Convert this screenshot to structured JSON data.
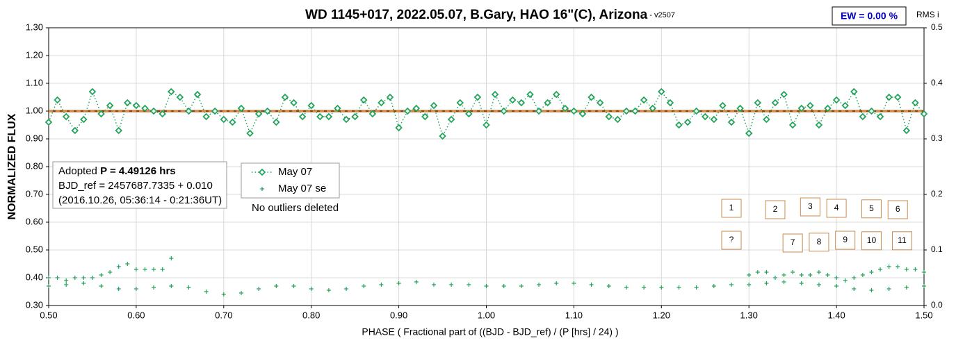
{
  "chart_data": {
    "type": "scatter",
    "title": "WD 1145+017, 2022.05.07, B.Gary, HAO 16\"(C), Arizona",
    "subtitle": " - v2507",
    "xlabel": "PHASE ( Fractional part of ((BJD - BJD_ref) / (P [hrs] / 24) )",
    "ylabel": "NORMALIZED FLUX",
    "y2label": "RMS i",
    "ew": "EW = 0.00 %",
    "info": {
      "prefix": "Adopted ",
      "period": "P = 4.49126 hrs",
      "line2": "BJD_ref = 2457687.7335 + 0.010",
      "line3": "(2016.10.26, 05:36:14 - 0:21:36UT)"
    },
    "note": "No outliers deleted",
    "xlim": [
      0.5,
      1.5
    ],
    "xticks": [
      {
        "value": 0.5,
        "label": "0.50"
      },
      {
        "value": 0.6,
        "label": "0.60"
      },
      {
        "value": 0.7,
        "label": "0.70"
      },
      {
        "value": 0.8,
        "label": "0.80"
      },
      {
        "value": 0.9,
        "label": "0.90"
      },
      {
        "value": 1.0,
        "label": "1.00"
      },
      {
        "value": 1.1,
        "label": "1.10"
      },
      {
        "value": 1.2,
        "label": "1.20"
      },
      {
        "value": 1.3,
        "label": "1.30"
      },
      {
        "value": 1.4,
        "label": "1.40"
      },
      {
        "value": 1.5,
        "label": "1.50"
      }
    ],
    "ylim": [
      0.3,
      1.3
    ],
    "yticks": [
      {
        "value": 0.3,
        "label": "0.30"
      },
      {
        "value": 0.4,
        "label": "0.40"
      },
      {
        "value": 0.5,
        "label": "0.50"
      },
      {
        "value": 0.6,
        "label": "0.60"
      },
      {
        "value": 0.7,
        "label": "0.70"
      },
      {
        "value": 0.8,
        "label": "0.80"
      },
      {
        "value": 0.9,
        "label": "0.90"
      },
      {
        "value": 1.0,
        "label": "1.00"
      },
      {
        "value": 1.1,
        "label": "1.10"
      },
      {
        "value": 1.2,
        "label": "1.20"
      },
      {
        "value": 1.3,
        "label": "1.30"
      }
    ],
    "y2lim": [
      0,
      0.5
    ],
    "y2ticks": [
      {
        "value": 0,
        "label": "0.0"
      },
      0.1,
      0.2,
      0.3,
      0.4,
      0.5
    ],
    "grid": true,
    "reference_lines": [
      {
        "value": 1.0,
        "color": "#8b4513",
        "dash": false
      },
      {
        "value": 1.0,
        "color": "#e8892c",
        "dash": true
      }
    ],
    "series": [
      {
        "name": "May 07",
        "color": "#22a35a",
        "marker": "diamond",
        "line": "dotted",
        "x": [
          0.5,
          0.51,
          0.52,
          0.53,
          0.54,
          0.55,
          0.56,
          0.57,
          0.58,
          0.59,
          0.6,
          0.61,
          0.62,
          0.63,
          0.64,
          0.65,
          0.66,
          0.67,
          0.68,
          0.69,
          0.7,
          0.71,
          0.72,
          0.73,
          0.74,
          0.75,
          0.76,
          0.77,
          0.78,
          0.79,
          0.8,
          0.81,
          0.82,
          0.83,
          0.84,
          0.85,
          0.86,
          0.87,
          0.88,
          0.89,
          0.9,
          0.91,
          0.92,
          0.93,
          0.94,
          0.95,
          0.96,
          0.97,
          0.98,
          0.99,
          1.0,
          1.01,
          1.02,
          1.03,
          1.04,
          1.05,
          1.06,
          1.07,
          1.08,
          1.09,
          1.1,
          1.11,
          1.12,
          1.13,
          1.14,
          1.15,
          1.16,
          1.17,
          1.18,
          1.19,
          1.2,
          1.21,
          1.22,
          1.23,
          1.24,
          1.25,
          1.26,
          1.27,
          1.28,
          1.29,
          1.3,
          1.31,
          1.32,
          1.33,
          1.34,
          1.35,
          1.36,
          1.37,
          1.38,
          1.39,
          1.4,
          1.41,
          1.42,
          1.43,
          1.44,
          1.45,
          1.46,
          1.47,
          1.48,
          1.49,
          1.5
        ],
        "values": [
          0.96,
          1.04,
          0.98,
          0.93,
          0.97,
          1.07,
          0.99,
          1.02,
          0.93,
          1.03,
          1.02,
          1.01,
          1.0,
          0.99,
          1.07,
          1.05,
          1.0,
          1.06,
          0.98,
          1.0,
          0.97,
          0.96,
          1.01,
          0.92,
          0.99,
          1.0,
          0.96,
          1.05,
          1.03,
          0.98,
          1.02,
          0.98,
          0.98,
          1.01,
          0.97,
          0.98,
          1.04,
          0.99,
          1.03,
          1.05,
          0.94,
          1.0,
          1.01,
          0.98,
          1.02,
          0.91,
          0.97,
          1.03,
          0.99,
          1.05,
          0.95,
          1.06,
          1.0,
          1.04,
          1.03,
          1.06,
          1.0,
          1.03,
          1.06,
          1.01,
          1.0,
          0.99,
          1.05,
          1.03,
          0.98,
          0.97,
          1.0,
          1.0,
          1.04,
          1.01,
          1.07,
          1.03,
          0.95,
          0.96,
          1.0,
          0.98,
          0.97,
          1.02,
          0.96,
          1.01,
          0.92,
          1.03,
          0.97,
          1.03,
          1.06,
          0.95,
          1.01,
          1.02,
          0.95,
          1.01,
          1.04,
          1.02,
          1.07,
          0.98,
          1.0,
          0.98,
          1.05,
          1.05,
          0.93,
          1.03,
          0.99
        ]
      },
      {
        "name": "May 07 se",
        "color": "#22a35a",
        "marker": "plus",
        "line": "none",
        "x": [
          0.5,
          0.52,
          0.54,
          0.56,
          0.58,
          0.6,
          0.62,
          0.64,
          0.66,
          0.68,
          0.7,
          0.72,
          0.74,
          0.76,
          0.78,
          0.8,
          0.82,
          0.84,
          0.86,
          0.88,
          0.9,
          0.92,
          0.94,
          0.96,
          0.98,
          1.0,
          1.02,
          1.04,
          1.06,
          1.08,
          1.1,
          1.12,
          1.14,
          1.16,
          1.18,
          1.2,
          1.22,
          1.24,
          1.26,
          1.28,
          1.3,
          1.32,
          1.34,
          1.36,
          1.38,
          1.4,
          1.42,
          1.44,
          1.46,
          1.48,
          1.5,
          0.5,
          0.51,
          0.52,
          0.53,
          0.54,
          0.55,
          0.56,
          0.57,
          0.58,
          0.59,
          0.6,
          0.61,
          0.62,
          0.63,
          0.64,
          1.3,
          1.31,
          1.32,
          1.33,
          1.34,
          1.35,
          1.36,
          1.37,
          1.38,
          1.39,
          1.4,
          1.41,
          1.42,
          1.43,
          1.44,
          1.45,
          1.46,
          1.47,
          1.48,
          1.49,
          1.5
        ],
        "values": [
          0.37,
          0.375,
          0.38,
          0.37,
          0.36,
          0.36,
          0.365,
          0.37,
          0.365,
          0.35,
          0.34,
          0.345,
          0.36,
          0.37,
          0.37,
          0.36,
          0.355,
          0.36,
          0.37,
          0.375,
          0.38,
          0.385,
          0.375,
          0.375,
          0.375,
          0.37,
          0.37,
          0.37,
          0.375,
          0.38,
          0.38,
          0.375,
          0.37,
          0.365,
          0.365,
          0.365,
          0.365,
          0.365,
          0.37,
          0.375,
          0.375,
          0.38,
          0.385,
          0.38,
          0.375,
          0.37,
          0.36,
          0.355,
          0.36,
          0.365,
          0.37,
          0.4,
          0.4,
          0.39,
          0.4,
          0.4,
          0.4,
          0.41,
          0.42,
          0.44,
          0.45,
          0.43,
          0.43,
          0.43,
          0.43,
          0.47,
          0.41,
          0.42,
          0.42,
          0.4,
          0.41,
          0.42,
          0.41,
          0.41,
          0.42,
          0.41,
          0.4,
          0.39,
          0.4,
          0.41,
          0.42,
          0.43,
          0.44,
          0.44,
          0.43,
          0.43,
          0.42
        ]
      }
    ],
    "annotations": [
      {
        "text": "1",
        "x": 1.28,
        "y": 0.65
      },
      {
        "text": "2",
        "x": 1.33,
        "y": 0.645
      },
      {
        "text": "3",
        "x": 1.37,
        "y": 0.655
      },
      {
        "text": "4",
        "x": 1.4,
        "y": 0.65
      },
      {
        "text": "5",
        "x": 1.44,
        "y": 0.648
      },
      {
        "text": "6",
        "x": 1.47,
        "y": 0.645
      },
      {
        "text": "?",
        "x": 1.28,
        "y": 0.535
      },
      {
        "text": "7",
        "x": 1.35,
        "y": 0.525
      },
      {
        "text": "8",
        "x": 1.38,
        "y": 0.528
      },
      {
        "text": "9",
        "x": 1.41,
        "y": 0.535
      },
      {
        "text": "10",
        "x": 1.44,
        "y": 0.533
      },
      {
        "text": "11",
        "x": 1.475,
        "y": 0.533
      }
    ]
  }
}
